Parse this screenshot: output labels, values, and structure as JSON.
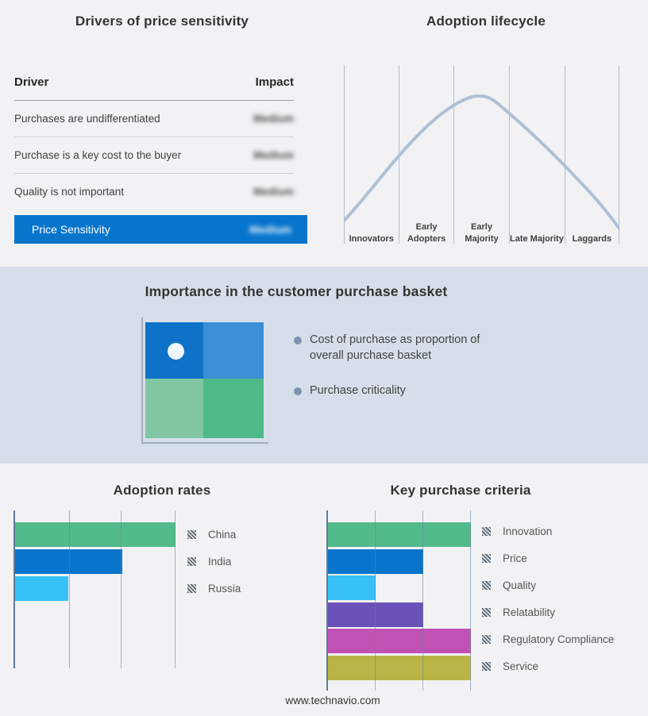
{
  "page": {
    "background": "#f2f2f4",
    "band_background": "#d6dfe9"
  },
  "drivers_table": {
    "title": "Drivers of price sensitivity",
    "col_driver": "Driver",
    "col_impact": "Impact",
    "rows": [
      {
        "driver": "Purchases are undifferentiated",
        "impact": "Medium",
        "impact_blurred": true
      },
      {
        "driver": "Purchase is a key cost to the buyer",
        "impact": "Medium",
        "impact_blurred": true
      },
      {
        "driver": "Quality is not important",
        "impact": "Medium",
        "impact_blurred": true
      }
    ],
    "summary_row": {
      "label": "Price Sensitivity",
      "impact": "Medium",
      "impact_blurred": true,
      "bar_color": "#0775cc"
    }
  },
  "basket_panel": {
    "title": "Importance in the customer purchase basket",
    "bullets": [
      "Cost of purchase as proportion of overall purchase basket",
      "Purchase criticality"
    ],
    "matrix_colors": {
      "top_left": "#0e72c8",
      "top_right": "#3b8fd4",
      "bottom_left": "#80c6a3",
      "bottom_right": "#4fba89"
    },
    "dot_color": "#eef6fc"
  },
  "chart_data": [
    {
      "type": "line",
      "title": "Adoption lifecycle",
      "shape": "bell curve, peak over Early Majority",
      "stages": [
        "Innovators",
        "Early Adopters",
        "Early Majority",
        "Late Majority",
        "Laggards"
      ],
      "relative_heights_at_gridlines": [
        0.13,
        0.5,
        0.78,
        0.73,
        0.44,
        0.08
      ],
      "peak_relative_height": 0.83,
      "curve_color": "#aec0d6",
      "grid": true,
      "axis_labels_shown": false
    },
    {
      "type": "bar",
      "orientation": "horizontal",
      "title": "Adoption rates",
      "categories": [
        "China",
        "India",
        "Russia"
      ],
      "values": [
        3,
        2,
        1
      ],
      "value_unit": "gridline units (no numeric axis labels shown)",
      "xlim": [
        0,
        3
      ],
      "colors": [
        "#52bb8b",
        "#0775cc",
        "#35c1f5"
      ],
      "legend_position": "right",
      "grid": true
    },
    {
      "type": "bar",
      "orientation": "horizontal",
      "title": "Key purchase criteria",
      "categories": [
        "Innovation",
        "Price",
        "Quality",
        "Relatability",
        "Regulatory Compliance",
        "Service"
      ],
      "values": [
        3,
        2,
        1,
        2,
        3,
        3
      ],
      "value_unit": "gridline units (no numeric axis labels shown)",
      "xlim": [
        0,
        3
      ],
      "colors": [
        "#52bb8b",
        "#0775cc",
        "#35c1f5",
        "#6a52b8",
        "#bf52b4",
        "#b9b647"
      ],
      "legend_position": "right",
      "grid": true
    }
  ],
  "footer": {
    "url": "www.technavio.com"
  }
}
